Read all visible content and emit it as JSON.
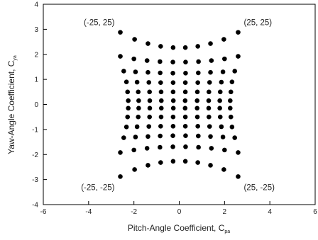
{
  "chart_data": {
    "type": "scatter",
    "title": "",
    "xlabel": "Pitch-Angle Coefficient, C",
    "xlabel_subscript": "pa",
    "ylabel": "Yaw-Angle Coefficient, C",
    "ylabel_subscript": "ya",
    "xlim": [
      -6,
      6
    ],
    "ylim": [
      -4,
      4
    ],
    "x_ticks": [
      -6,
      -4,
      -2,
      0,
      2,
      4,
      6
    ],
    "y_ticks": [
      -4,
      -3,
      -2,
      -1,
      0,
      1,
      2,
      3,
      4
    ],
    "x_tick_labels": [
      "-6",
      "-4",
      "-2",
      "0",
      "2",
      "4",
      "6"
    ],
    "y_tick_labels": [
      "-4",
      "-3",
      "-2",
      "-1",
      "0",
      "1",
      "2",
      "3",
      "4"
    ],
    "grid": false,
    "marker": "filled-circle",
    "marker_color": "#000000",
    "annotations": [
      {
        "text": "(-25, 25)",
        "x": -2.6,
        "y": 2.88
      },
      {
        "text": "(25, 25)",
        "x": 2.6,
        "y": 2.88
      },
      {
        "text": "(-25, -25)",
        "x": -2.6,
        "y": -2.88
      },
      {
        "text": "(25, -25)",
        "x": 2.6,
        "y": -2.88
      }
    ],
    "series": [
      {
        "points": [
          [
            -2.6,
            2.88
          ],
          [
            -1.97,
            2.6
          ],
          [
            -1.38,
            2.43
          ],
          [
            -0.82,
            2.32
          ],
          [
            -0.27,
            2.27
          ],
          [
            0.27,
            2.27
          ],
          [
            0.82,
            2.32
          ],
          [
            1.38,
            2.43
          ],
          [
            1.97,
            2.6
          ],
          [
            2.6,
            2.88
          ],
          [
            -2.6,
            1.92
          ],
          [
            -2.0,
            1.82
          ],
          [
            -1.42,
            1.75
          ],
          [
            -0.85,
            1.71
          ],
          [
            -0.28,
            1.69
          ],
          [
            0.28,
            1.69
          ],
          [
            0.85,
            1.71
          ],
          [
            1.42,
            1.75
          ],
          [
            2.0,
            1.82
          ],
          [
            2.6,
            1.92
          ],
          [
            -2.45,
            1.33
          ],
          [
            -1.93,
            1.3
          ],
          [
            -1.38,
            1.28
          ],
          [
            -0.84,
            1.26
          ],
          [
            -0.28,
            1.25
          ],
          [
            0.28,
            1.25
          ],
          [
            0.84,
            1.26
          ],
          [
            1.38,
            1.28
          ],
          [
            1.93,
            1.3
          ],
          [
            2.45,
            1.33
          ],
          [
            -2.33,
            0.9
          ],
          [
            -1.86,
            0.89
          ],
          [
            -1.34,
            0.88
          ],
          [
            -0.82,
            0.87
          ],
          [
            -0.27,
            0.87
          ],
          [
            0.27,
            0.87
          ],
          [
            0.82,
            0.87
          ],
          [
            1.34,
            0.88
          ],
          [
            1.86,
            0.89
          ],
          [
            2.33,
            0.9
          ],
          [
            -2.28,
            0.5
          ],
          [
            -1.81,
            0.5
          ],
          [
            -1.31,
            0.5
          ],
          [
            -0.8,
            0.5
          ],
          [
            -0.27,
            0.5
          ],
          [
            0.27,
            0.5
          ],
          [
            0.8,
            0.5
          ],
          [
            1.31,
            0.5
          ],
          [
            1.81,
            0.5
          ],
          [
            2.28,
            0.5
          ],
          [
            -2.25,
            0.15
          ],
          [
            -1.79,
            0.15
          ],
          [
            -1.3,
            0.15
          ],
          [
            -0.79,
            0.15
          ],
          [
            -0.26,
            0.15
          ],
          [
            0.26,
            0.15
          ],
          [
            0.79,
            0.15
          ],
          [
            1.3,
            0.15
          ],
          [
            1.79,
            0.15
          ],
          [
            2.25,
            0.15
          ],
          [
            -2.25,
            -0.15
          ],
          [
            -1.79,
            -0.15
          ],
          [
            -1.3,
            -0.15
          ],
          [
            -0.79,
            -0.15
          ],
          [
            -0.26,
            -0.15
          ],
          [
            0.26,
            -0.15
          ],
          [
            0.79,
            -0.15
          ],
          [
            1.3,
            -0.15
          ],
          [
            1.79,
            -0.15
          ],
          [
            2.25,
            -0.15
          ],
          [
            -2.28,
            -0.5
          ],
          [
            -1.81,
            -0.5
          ],
          [
            -1.31,
            -0.5
          ],
          [
            -0.8,
            -0.5
          ],
          [
            -0.27,
            -0.5
          ],
          [
            0.27,
            -0.5
          ],
          [
            0.8,
            -0.5
          ],
          [
            1.31,
            -0.5
          ],
          [
            1.81,
            -0.5
          ],
          [
            2.28,
            -0.5
          ],
          [
            -2.33,
            -0.9
          ],
          [
            -1.86,
            -0.89
          ],
          [
            -1.34,
            -0.88
          ],
          [
            -0.82,
            -0.87
          ],
          [
            -0.27,
            -0.87
          ],
          [
            0.27,
            -0.87
          ],
          [
            0.82,
            -0.87
          ],
          [
            1.34,
            -0.88
          ],
          [
            1.86,
            -0.89
          ],
          [
            2.33,
            -0.9
          ],
          [
            -2.45,
            -1.33
          ],
          [
            -1.93,
            -1.3
          ],
          [
            -1.38,
            -1.28
          ],
          [
            -0.84,
            -1.26
          ],
          [
            -0.28,
            -1.25
          ],
          [
            0.28,
            -1.25
          ],
          [
            0.84,
            -1.26
          ],
          [
            1.38,
            -1.28
          ],
          [
            1.93,
            -1.3
          ],
          [
            2.45,
            -1.33
          ],
          [
            -2.6,
            -1.92
          ],
          [
            -2.0,
            -1.82
          ],
          [
            -1.42,
            -1.75
          ],
          [
            -0.85,
            -1.71
          ],
          [
            -0.28,
            -1.69
          ],
          [
            0.28,
            -1.69
          ],
          [
            0.85,
            -1.71
          ],
          [
            1.42,
            -1.75
          ],
          [
            2.0,
            -1.82
          ],
          [
            2.6,
            -1.92
          ],
          [
            -2.6,
            -2.88
          ],
          [
            -1.97,
            -2.6
          ],
          [
            -1.38,
            -2.43
          ],
          [
            -0.82,
            -2.32
          ],
          [
            -0.27,
            -2.27
          ],
          [
            0.27,
            -2.27
          ],
          [
            0.82,
            -2.32
          ],
          [
            1.38,
            -2.43
          ],
          [
            1.97,
            -2.6
          ],
          [
            2.6,
            -2.88
          ]
        ]
      }
    ]
  }
}
